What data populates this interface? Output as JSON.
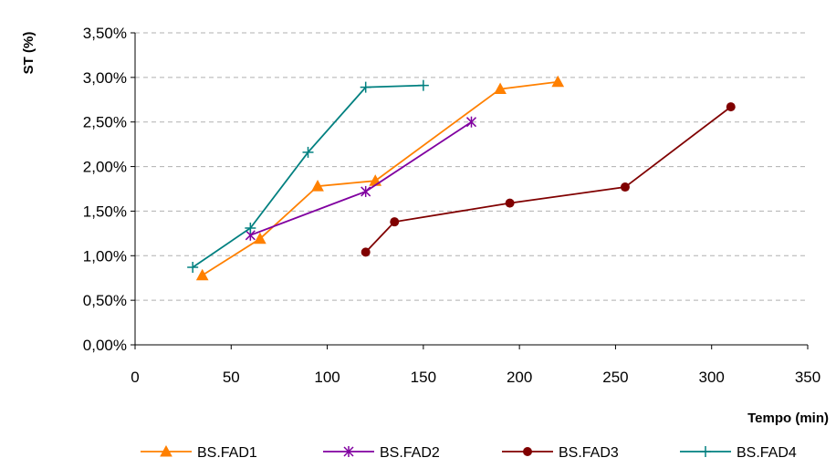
{
  "chart_data": {
    "type": "line",
    "xlabel": "Tempo (min)",
    "ylabel": "ST (%)",
    "xlim": [
      0,
      350
    ],
    "ylim": [
      0,
      0.035
    ],
    "x_ticks": [
      0,
      50,
      100,
      150,
      200,
      250,
      300,
      350
    ],
    "y_ticks": [
      0,
      0.005,
      0.01,
      0.015,
      0.02,
      0.025,
      0.03,
      0.035
    ],
    "x_tick_labels": [
      "0",
      "50",
      "100",
      "150",
      "200",
      "250",
      "300",
      "350"
    ],
    "y_tick_labels": [
      "0,00%",
      "0,50%",
      "1,00%",
      "1,50%",
      "2,00%",
      "2,50%",
      "3,00%",
      "3,50%"
    ],
    "grid": "horizontal dashed",
    "legend_position": "bottom",
    "series": [
      {
        "name": "BS.FAD1",
        "color": "#ff8000",
        "marker": "triangle",
        "x": [
          35,
          65,
          95,
          125,
          190,
          220
        ],
        "y": [
          0.0078,
          0.0119,
          0.0178,
          0.0184,
          0.0287,
          0.0295
        ]
      },
      {
        "name": "BS.FAD2",
        "color": "#8000a0",
        "marker": "star",
        "x": [
          60,
          120,
          175
        ],
        "y": [
          0.0123,
          0.0172,
          0.025
        ]
      },
      {
        "name": "BS.FAD3",
        "color": "#800000",
        "marker": "circle",
        "x": [
          120,
          135,
          195,
          255,
          310
        ],
        "y": [
          0.0104,
          0.0138,
          0.0159,
          0.0177,
          0.0267
        ]
      },
      {
        "name": "BS.FAD4",
        "color": "#008080",
        "marker": "plus",
        "x": [
          30,
          60,
          90,
          120,
          150
        ],
        "y": [
          0.0087,
          0.0131,
          0.0216,
          0.0289,
          0.0291
        ]
      }
    ]
  }
}
